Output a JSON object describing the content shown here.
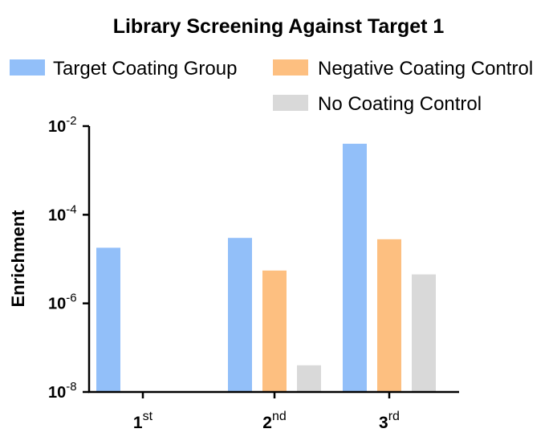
{
  "chart_data": {
    "type": "bar",
    "title": "Library Screening Against Target 1",
    "ylabel": "Enrichment",
    "xlabel": "",
    "yscale": "log",
    "ylim": [
      1e-08,
      0.01
    ],
    "grid": false,
    "legend_position": "top",
    "y_ticks": [
      {
        "value": 0.01,
        "base": "10",
        "exp": "-2"
      },
      {
        "value": 0.0001,
        "base": "10",
        "exp": "-4"
      },
      {
        "value": 1e-06,
        "base": "10",
        "exp": "-6"
      },
      {
        "value": 1e-08,
        "base": "10",
        "exp": "-8"
      }
    ],
    "categories": [
      {
        "base": "1",
        "sup": "st"
      },
      {
        "base": "2",
        "sup": "nd"
      },
      {
        "base": "3",
        "sup": "rd"
      }
    ],
    "series": [
      {
        "name": "Target Coating Group",
        "color": "#92bff9",
        "values": [
          1.8e-05,
          3e-05,
          0.004
        ]
      },
      {
        "name": "Negative Coating Control",
        "color": "#fdbf80",
        "values": [
          null,
          5.5e-06,
          2.8e-05
        ]
      },
      {
        "name": "No Coating Control",
        "color": "#d9d9d9",
        "values": [
          null,
          4e-08,
          4.5e-06
        ]
      }
    ]
  }
}
